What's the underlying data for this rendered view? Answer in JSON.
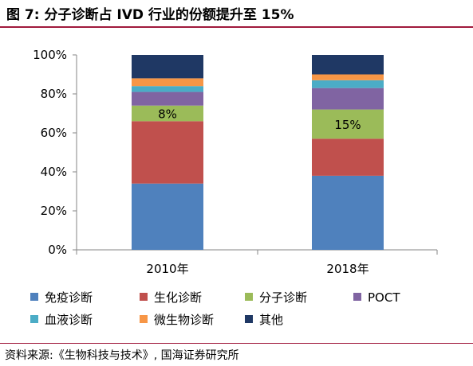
{
  "title": "图 7:  分子诊断占 IVD 行业的份额提升至 15%",
  "source": "资料来源:《生物科技与技术》, 国海证券研究所",
  "chart_data": {
    "type": "bar",
    "stacked": true,
    "categories": [
      "2010年",
      "2018年"
    ],
    "series": [
      {
        "name": "免疫诊断",
        "color": "#4f81bd",
        "values": [
          34,
          38
        ]
      },
      {
        "name": "生化诊断",
        "color": "#c0504d",
        "values": [
          32,
          19
        ]
      },
      {
        "name": "分子诊断",
        "color": "#9bbb59",
        "values": [
          8,
          15
        ]
      },
      {
        "name": "POCT",
        "color": "#8064a2",
        "values": [
          7,
          11
        ]
      },
      {
        "name": "血液诊断",
        "color": "#4bacc6",
        "values": [
          3,
          4
        ]
      },
      {
        "name": "微生物诊断",
        "color": "#f79646",
        "values": [
          4,
          3
        ]
      },
      {
        "name": "其他",
        "color": "#1f3864",
        "values": [
          12,
          10
        ]
      }
    ],
    "data_labels": [
      {
        "series": "分子诊断",
        "category": "2010年",
        "text": "8%"
      },
      {
        "series": "分子诊断",
        "category": "2018年",
        "text": "15%"
      }
    ],
    "yticks": [
      "0%",
      "20%",
      "40%",
      "60%",
      "80%",
      "100%"
    ],
    "ylim": [
      0,
      100
    ],
    "grid": false,
    "legend_position": "bottom"
  }
}
